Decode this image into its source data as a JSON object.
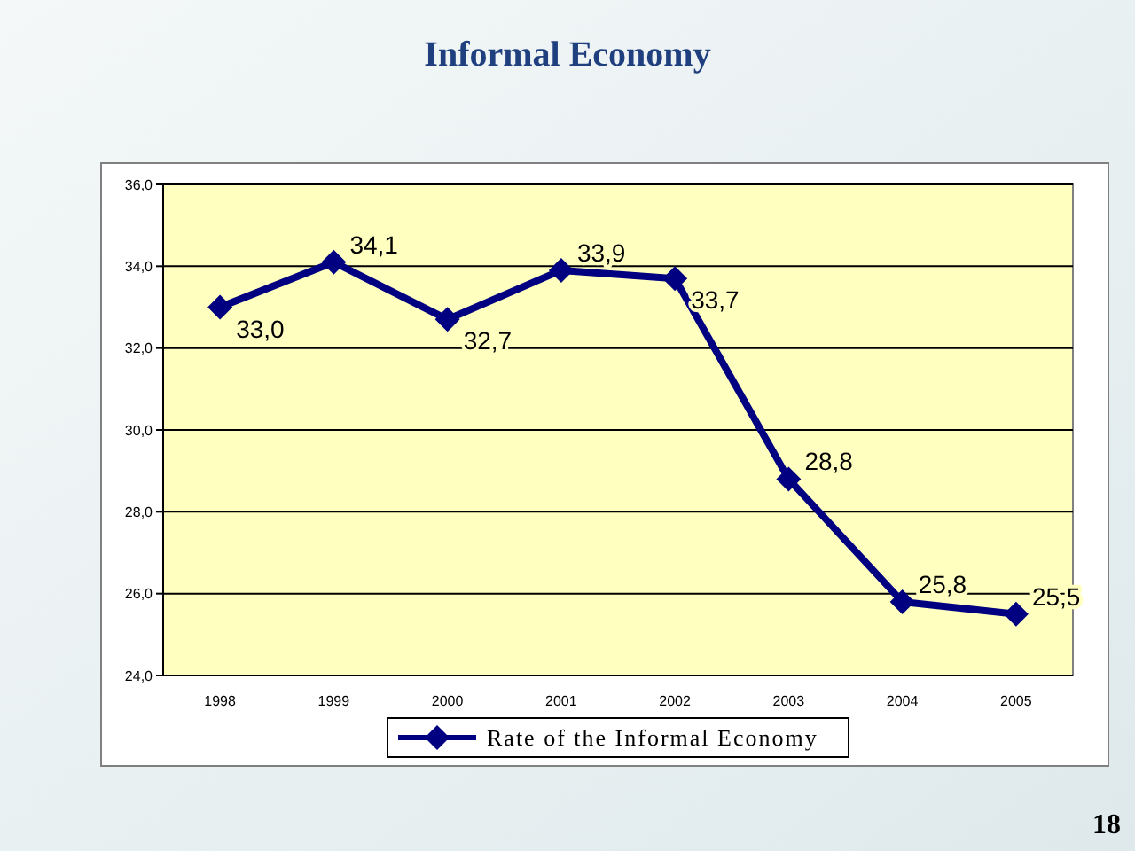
{
  "chart_data": {
    "type": "line",
    "title": "Informal Economy",
    "categories": [
      "1998",
      "1999",
      "2000",
      "2001",
      "2002",
      "2003",
      "2004",
      "2005"
    ],
    "series": [
      {
        "name": "Rate of the Informal Economy",
        "color": "#000080",
        "values": [
          33.0,
          34.1,
          32.7,
          33.9,
          33.7,
          28.8,
          25.8,
          25.5
        ],
        "value_labels": [
          "33,0",
          "34,1",
          "32,7",
          "33,9",
          "33,7",
          "28,8",
          "25,8",
          "25,5"
        ]
      }
    ],
    "ylim": [
      24,
      36
    ],
    "yticks": [
      {
        "value": 24,
        "label": "24,0"
      },
      {
        "value": 26,
        "label": "26,0"
      },
      {
        "value": 28,
        "label": "28,0"
      },
      {
        "value": 30,
        "label": "30,0"
      },
      {
        "value": 32,
        "label": "32,0"
      },
      {
        "value": 34,
        "label": "34,0"
      },
      {
        "value": 36,
        "label": "36,0"
      }
    ],
    "grid": "y",
    "legend": "bottom",
    "marker": "diamond",
    "line_style": "solid",
    "annotations": [
      "18"
    ]
  }
}
